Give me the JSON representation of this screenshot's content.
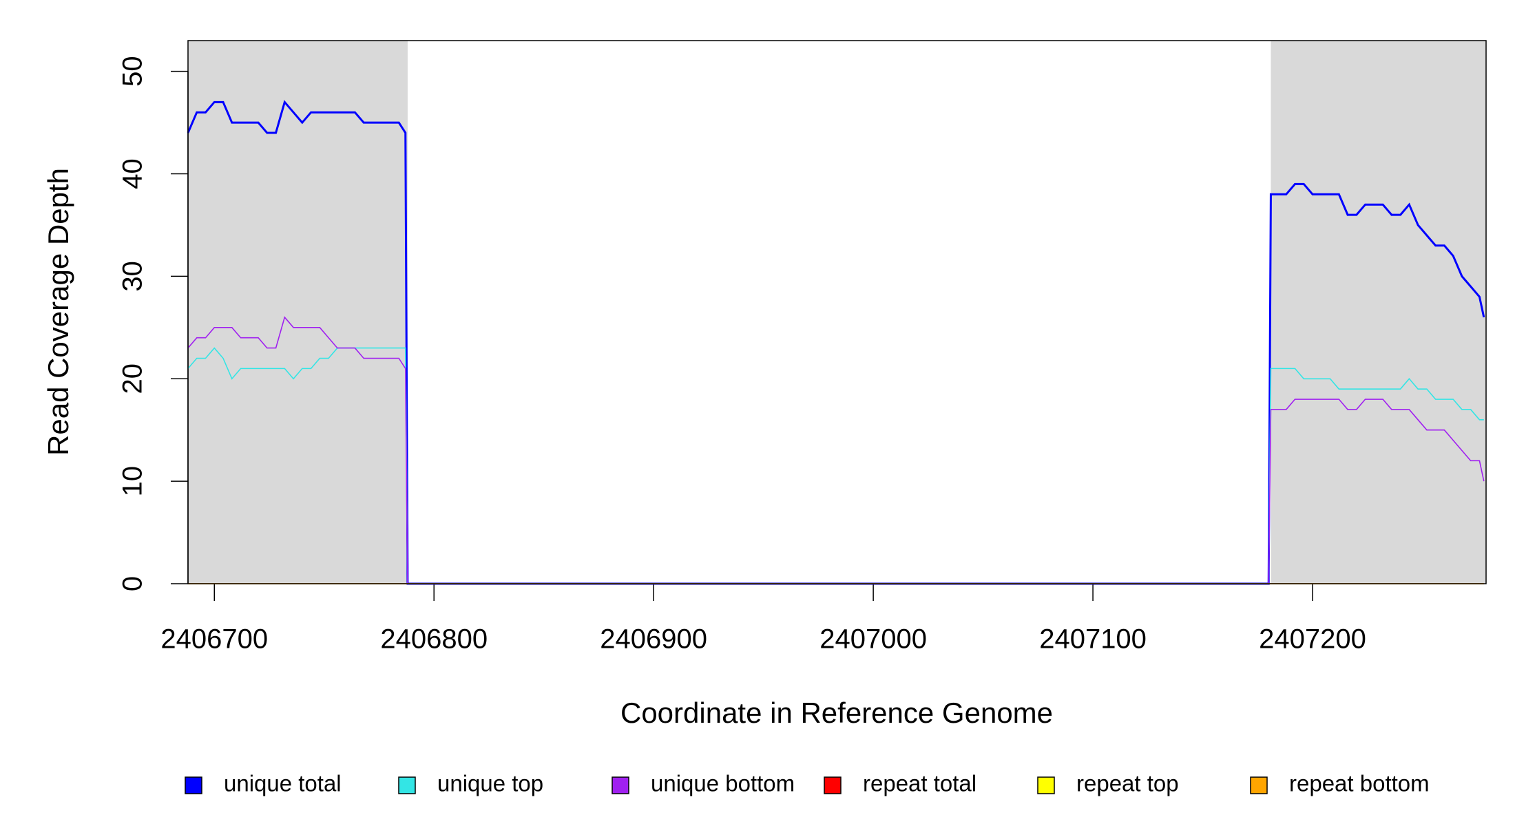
{
  "chart_data": {
    "type": "line",
    "xlabel": "Coordinate in Reference Genome",
    "ylabel": "Read Coverage Depth",
    "x": [
      2406688,
      2406692,
      2406696,
      2406700,
      2406704,
      2406708,
      2406712,
      2406716,
      2406720,
      2406724,
      2406728,
      2406732,
      2406736,
      2406740,
      2406744,
      2406748,
      2406752,
      2406756,
      2406760,
      2406764,
      2406768,
      2406772,
      2406776,
      2406780,
      2406784,
      2406787,
      2406788,
      2407180,
      2407181,
      2407184,
      2407188,
      2407192,
      2407196,
      2407200,
      2407204,
      2407208,
      2407212,
      2407216,
      2407220,
      2407224,
      2407228,
      2407232,
      2407236,
      2407240,
      2407244,
      2407248,
      2407252,
      2407256,
      2407260,
      2407264,
      2407268,
      2407272,
      2407276,
      2407278
    ],
    "series": [
      {
        "name": "unique total",
        "color": "#0000ff",
        "values": [
          44,
          46,
          46,
          47,
          47,
          45,
          45,
          45,
          45,
          44,
          44,
          47,
          46,
          45,
          46,
          46,
          46,
          46,
          46,
          46,
          45,
          45,
          45,
          45,
          45,
          44,
          0,
          0,
          38,
          38,
          38,
          39,
          39,
          38,
          38,
          38,
          38,
          36,
          36,
          37,
          37,
          37,
          36,
          36,
          37,
          35,
          34,
          33,
          33,
          32,
          30,
          29,
          28,
          26
        ]
      },
      {
        "name": "unique top",
        "color": "#33e5e5",
        "values": [
          21,
          22,
          22,
          23,
          22,
          20,
          21,
          21,
          21,
          21,
          21,
          21,
          20,
          21,
          21,
          22,
          22,
          23,
          23,
          23,
          23,
          23,
          23,
          23,
          23,
          23,
          0,
          0,
          21,
          21,
          21,
          21,
          20,
          20,
          20,
          20,
          19,
          19,
          19,
          19,
          19,
          19,
          19,
          19,
          20,
          19,
          19,
          18,
          18,
          18,
          17,
          17,
          16,
          16
        ]
      },
      {
        "name": "unique bottom",
        "color": "#a020f0",
        "values": [
          23,
          24,
          24,
          25,
          25,
          25,
          24,
          24,
          24,
          23,
          23,
          26,
          25,
          25,
          25,
          25,
          24,
          23,
          23,
          23,
          22,
          22,
          22,
          22,
          22,
          21,
          0,
          0,
          17,
          17,
          17,
          18,
          18,
          18,
          18,
          18,
          18,
          17,
          17,
          18,
          18,
          18,
          17,
          17,
          17,
          16,
          15,
          15,
          15,
          14,
          13,
          12,
          12,
          10
        ]
      },
      {
        "name": "repeat total",
        "color": "#ff0000",
        "values": [
          0,
          0,
          0,
          0,
          0,
          0,
          0,
          0,
          0,
          0,
          0,
          0,
          0,
          0,
          0,
          0,
          0,
          0,
          0,
          0,
          0,
          0,
          0,
          0,
          0,
          0,
          0,
          0,
          0,
          0,
          0,
          0,
          0,
          0,
          0,
          0,
          0,
          0,
          0,
          0,
          0,
          0,
          0,
          0,
          0,
          0,
          0,
          0,
          0,
          0,
          0,
          0,
          0,
          0
        ]
      },
      {
        "name": "repeat top",
        "color": "#ffff00",
        "values": [
          0,
          0,
          0,
          0,
          0,
          0,
          0,
          0,
          0,
          0,
          0,
          0,
          0,
          0,
          0,
          0,
          0,
          0,
          0,
          0,
          0,
          0,
          0,
          0,
          0,
          0,
          0,
          0,
          0,
          0,
          0,
          0,
          0,
          0,
          0,
          0,
          0,
          0,
          0,
          0,
          0,
          0,
          0,
          0,
          0,
          0,
          0,
          0,
          0,
          0,
          0,
          0,
          0,
          0
        ]
      },
      {
        "name": "repeat bottom",
        "color": "#ffa500",
        "values": [
          0,
          0,
          0,
          0,
          0,
          0,
          0,
          0,
          0,
          0,
          0,
          0,
          0,
          0,
          0,
          0,
          0,
          0,
          0,
          0,
          0,
          0,
          0,
          0,
          0,
          0,
          0,
          0,
          0,
          0,
          0,
          0,
          0,
          0,
          0,
          0,
          0,
          0,
          0,
          0,
          0,
          0,
          0,
          0,
          0,
          0,
          0,
          0,
          0,
          0,
          0,
          0,
          0,
          0
        ]
      }
    ],
    "highlight_regions": [
      [
        2406688,
        2406788
      ],
      [
        2407181,
        2407279
      ]
    ],
    "highlight_color": "#d9d9d9",
    "xlim": [
      2406688,
      2407279
    ],
    "xticks": [
      2406700,
      2406800,
      2406900,
      2407000,
      2407100,
      2407200
    ],
    "ylim": [
      0,
      53
    ],
    "yticks": [
      0,
      10,
      20,
      30,
      40,
      50
    ],
    "legend": "bottom"
  }
}
